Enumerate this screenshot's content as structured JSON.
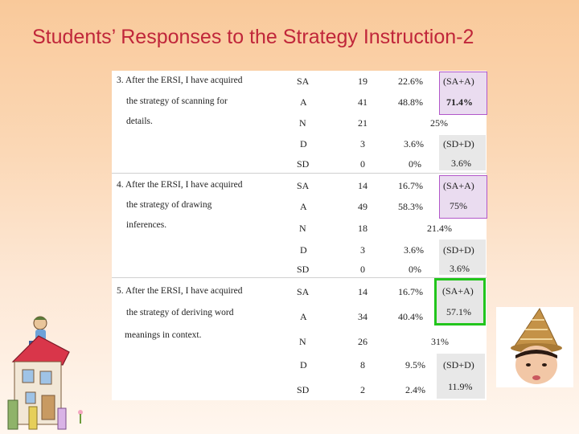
{
  "title": "Students’ Responses to the Strategy Instruction-2",
  "items": [
    {
      "lines": [
        "3. After the ERSI, I have acquired",
        "the strategy of scanning for",
        "details."
      ],
      "rows": [
        {
          "code": "SA",
          "count": "19",
          "pct": "22.6%"
        },
        {
          "code": "A",
          "count": "41",
          "pct": "48.8%"
        },
        {
          "code": "N",
          "count": "21",
          "pct": ""
        },
        {
          "code": "D",
          "count": "3",
          "pct": "3.6%"
        },
        {
          "code": "SD",
          "count": "0",
          "pct": "0%"
        }
      ],
      "agree_label": "(SA+A)",
      "agree_total": "71.4%",
      "neutral_total": "25%",
      "disagree_label": "(SD+D)",
      "disagree_total": "3.6%"
    },
    {
      "lines": [
        "4. After the ERSI, I have acquired",
        "the strategy of drawing",
        "inferences."
      ],
      "rows": [
        {
          "code": "SA",
          "count": "14",
          "pct": "16.7%"
        },
        {
          "code": "A",
          "count": "49",
          "pct": "58.3%"
        },
        {
          "code": "N",
          "count": "18",
          "pct": ""
        },
        {
          "code": "D",
          "count": "3",
          "pct": "3.6%"
        },
        {
          "code": "SD",
          "count": "0",
          "pct": "0%"
        }
      ],
      "agree_label": "(SA+A)",
      "agree_total": "75%",
      "neutral_total": "21.4%",
      "disagree_label": "(SD+D)",
      "disagree_total": "3.6%"
    },
    {
      "lines": [
        "5. After the ERSI, I have acquired",
        "the strategy of deriving word",
        "meanings in context."
      ],
      "rows": [
        {
          "code": "SA",
          "count": "14",
          "pct": "16.7%"
        },
        {
          "code": "A",
          "count": "34",
          "pct": "40.4%"
        },
        {
          "code": "N",
          "count": "26",
          "pct": ""
        },
        {
          "code": "D",
          "count": "8",
          "pct": "9.5%"
        },
        {
          "code": "SD",
          "count": "2",
          "pct": "2.4%"
        }
      ],
      "agree_label": "(SA+A)",
      "agree_total": "57.1%",
      "neutral_total": "31%",
      "disagree_label": "(SD+D)",
      "disagree_total": "11.9%"
    }
  ],
  "colors": {
    "title": "#c0263a",
    "highlight_purple": "#b257c9",
    "highlight_green": "#22c51c"
  },
  "images": {
    "left": "cartoon-house-illustration",
    "right": "child-wearing-party-hat-photo"
  }
}
